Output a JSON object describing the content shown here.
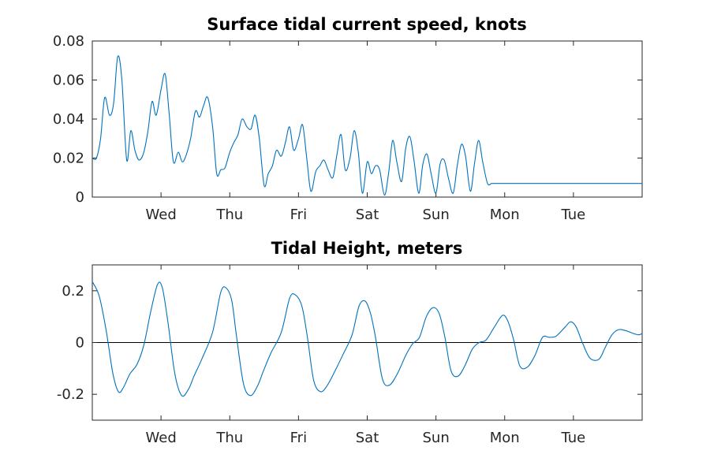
{
  "chart_data": [
    {
      "type": "line",
      "title": "Surface tidal current speed, knots",
      "xlabel": "",
      "ylabel": "",
      "x_tick_labels": [
        "Wed",
        "Thu",
        "Fri",
        "Sat",
        "Sun",
        "Mon",
        "Tue"
      ],
      "x_tick_days": [
        1,
        2,
        3,
        4,
        5,
        6,
        7
      ],
      "xlim": [
        0,
        8
      ],
      "ylim": [
        0,
        0.08
      ],
      "y_ticks": [
        0,
        0.02,
        0.04,
        0.06,
        0.08
      ],
      "y_tick_labels": [
        "0",
        "0.02",
        "0.04",
        "0.06",
        "0.08"
      ],
      "grid": false,
      "series": [
        {
          "color": "#0072bd",
          "x": [
            0,
            0.06,
            0.12,
            0.18,
            0.25,
            0.31,
            0.37,
            0.43,
            0.5,
            0.56,
            0.62,
            0.68,
            0.75,
            0.81,
            0.87,
            0.93,
            1.0,
            1.06,
            1.12,
            1.18,
            1.25,
            1.31,
            1.37,
            1.43,
            1.5,
            1.56,
            1.62,
            1.68,
            1.75,
            1.81,
            1.87,
            1.93,
            2.0,
            2.06,
            2.12,
            2.18,
            2.25,
            2.31,
            2.37,
            2.43,
            2.5,
            2.56,
            2.62,
            2.68,
            2.75,
            2.81,
            2.87,
            2.93,
            3.0,
            3.06,
            3.12,
            3.18,
            3.25,
            3.31,
            3.37,
            3.43,
            3.5,
            3.56,
            3.62,
            3.68,
            3.75,
            3.81,
            3.87,
            3.93,
            4.0,
            4.06,
            4.12,
            4.18,
            4.25,
            4.31,
            4.37,
            4.43,
            4.5,
            4.56,
            4.62,
            4.68,
            4.75,
            4.81,
            4.87,
            4.93,
            5.0,
            5.06,
            5.12,
            5.18,
            5.25,
            5.31,
            5.37,
            5.43,
            5.5,
            5.56,
            5.62,
            5.68,
            5.75,
            5.81,
            5.87,
            5.93,
            6.0,
            6.06,
            6.12,
            6.18,
            6.25,
            6.31,
            6.37,
            6.43,
            6.5,
            6.56,
            6.62,
            6.68,
            6.75,
            6.81,
            6.87,
            6.93,
            7.0,
            7.06,
            7.12,
            7.18,
            7.25,
            7.31,
            7.37,
            7.43,
            7.5,
            7.56,
            7.62,
            7.68,
            7.75,
            7.81,
            7.87,
            7.93,
            8.0
          ],
          "y": [
            0.02,
            0.02,
            0.03,
            0.051,
            0.042,
            0.048,
            0.072,
            0.06,
            0.019,
            0.034,
            0.024,
            0.019,
            0.023,
            0.034,
            0.049,
            0.042,
            0.055,
            0.063,
            0.042,
            0.018,
            0.023,
            0.018,
            0.022,
            0.03,
            0.044,
            0.041,
            0.047,
            0.051,
            0.036,
            0.012,
            0.014,
            0.015,
            0.023,
            0.028,
            0.032,
            0.04,
            0.036,
            0.035,
            0.042,
            0.03,
            0.006,
            0.012,
            0.016,
            0.024,
            0.021,
            0.028,
            0.036,
            0.024,
            0.03,
            0.037,
            0.02,
            0.003,
            0.013,
            0.016,
            0.019,
            0.014,
            0.01,
            0.022,
            0.032,
            0.014,
            0.02,
            0.034,
            0.023,
            0.002,
            0.018,
            0.012,
            0.016,
            0.014,
            0.001,
            0.012,
            0.029,
            0.018,
            0.008,
            0.025,
            0.031,
            0.019,
            0.002,
            0.017,
            0.022,
            0.012,
            0.002,
            0.017,
            0.019,
            0.01,
            0.002,
            0.016,
            0.027,
            0.021,
            0.003,
            0.017,
            0.029,
            0.018,
            0.007,
            0.007,
            0.007,
            0.007,
            0.007,
            0.007,
            0.007,
            0.007,
            0.007,
            0.007,
            0.007,
            0.007,
            0.007,
            0.007,
            0.007,
            0.007,
            0.007,
            0.007,
            0.007,
            0.007,
            0.007,
            0.007,
            0.007,
            0.007,
            0.007,
            0.007,
            0.007,
            0.007,
            0.007,
            0.007,
            0.007,
            0.007,
            0.007,
            0.007,
            0.007,
            0.007,
            0.007
          ]
        }
      ]
    },
    {
      "type": "line",
      "title": "Tidal Height, meters",
      "xlabel": "",
      "ylabel": "",
      "x_tick_labels": [
        "Wed",
        "Thu",
        "Fri",
        "Sat",
        "Sun",
        "Mon",
        "Tue"
      ],
      "x_tick_days": [
        1,
        2,
        3,
        4,
        5,
        6,
        7
      ],
      "xlim": [
        0,
        8
      ],
      "ylim": [
        -0.3,
        0.3
      ],
      "y_ticks": [
        -0.2,
        0,
        0.2
      ],
      "y_tick_labels": [
        "-0.2",
        "0",
        "0.2"
      ],
      "zero_line": true,
      "grid": false,
      "series": [
        {
          "color": "#0072bd",
          "x": [
            0.0,
            0.1,
            0.2,
            0.3,
            0.38,
            0.45,
            0.55,
            0.65,
            0.75,
            0.85,
            0.95,
            1.02,
            1.1,
            1.2,
            1.3,
            1.4,
            1.48,
            1.6,
            1.75,
            1.87,
            1.95,
            2.03,
            2.1,
            2.2,
            2.3,
            2.4,
            2.49,
            2.6,
            2.75,
            2.87,
            2.95,
            3.05,
            3.13,
            3.22,
            3.32,
            3.42,
            3.53,
            3.65,
            3.78,
            3.88,
            3.97,
            4.05,
            4.12,
            4.22,
            4.32,
            4.44,
            4.56,
            4.66,
            4.76,
            4.86,
            4.96,
            5.05,
            5.13,
            5.22,
            5.32,
            5.42,
            5.53,
            5.63,
            5.73,
            5.85,
            5.97,
            6.05,
            6.13,
            6.22,
            6.33,
            6.44,
            6.55,
            6.65,
            6.75,
            6.88,
            6.96,
            7.04,
            7.13,
            7.24,
            7.37,
            7.46,
            7.56,
            7.66,
            7.77,
            7.87,
            7.95,
            8.0
          ],
          "y": [
            0.235,
            0.18,
            0.05,
            -0.12,
            -0.19,
            -0.175,
            -0.12,
            -0.085,
            -0.01,
            0.12,
            0.225,
            0.21,
            0.08,
            -0.12,
            -0.205,
            -0.18,
            -0.13,
            -0.06,
            0.04,
            0.195,
            0.21,
            0.16,
            0.02,
            -0.16,
            -0.205,
            -0.17,
            -0.11,
            -0.04,
            0.04,
            0.17,
            0.185,
            0.14,
            0.02,
            -0.145,
            -0.19,
            -0.165,
            -0.11,
            -0.045,
            0.03,
            0.14,
            0.16,
            0.11,
            0.02,
            -0.14,
            -0.165,
            -0.12,
            -0.05,
            -0.005,
            0.02,
            0.1,
            0.135,
            0.11,
            0.02,
            -0.11,
            -0.13,
            -0.09,
            -0.025,
            0.0,
            0.01,
            0.06,
            0.105,
            0.08,
            0.01,
            -0.09,
            -0.095,
            -0.05,
            0.02,
            0.02,
            0.025,
            0.06,
            0.08,
            0.06,
            0.0,
            -0.06,
            -0.065,
            -0.02,
            0.03,
            0.05,
            0.045,
            0.035,
            0.03,
            0.035
          ]
        }
      ]
    }
  ]
}
